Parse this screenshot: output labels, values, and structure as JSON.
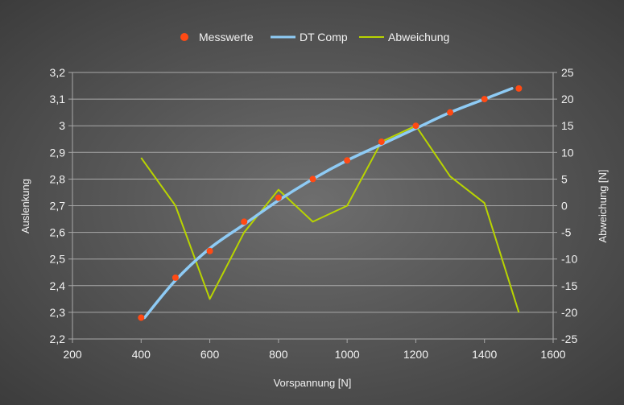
{
  "chart_data": {
    "type": "line",
    "title": "",
    "xlabel": "Vorspannung [N]",
    "ylabel": "Auslenkung",
    "y2label": "Abweichung [N]",
    "xlim": [
      200,
      1600
    ],
    "ylim": [
      2.2,
      3.2
    ],
    "y2lim": [
      -25,
      25
    ],
    "xticks": [
      200,
      400,
      600,
      800,
      1000,
      1200,
      1400,
      1600
    ],
    "yticks": [
      "2,2",
      "2,3",
      "2,4",
      "2,5",
      "2,6",
      "2,7",
      "2,8",
      "2,9",
      "3",
      "3,1",
      "3,2"
    ],
    "y2ticks": [
      "-25",
      "-20",
      "-15",
      "-10",
      "-5",
      "0",
      "5",
      "10",
      "15",
      "20",
      "25"
    ],
    "grid": true,
    "legend_position": "top-center",
    "colors": {
      "messwerte": "#ff4a14",
      "dtcomp": "#8ecbf5",
      "abweichung": "#b8d400",
      "grid": "#a8a8a8",
      "text": "#f2f2f2"
    },
    "series": [
      {
        "name": "Messwerte",
        "kind": "scatter",
        "axis": "left",
        "x": [
          400,
          500,
          600,
          700,
          800,
          900,
          1000,
          1100,
          1200,
          1300,
          1400,
          1500
        ],
        "y": [
          2.28,
          2.43,
          2.53,
          2.64,
          2.73,
          2.8,
          2.87,
          2.94,
          3.0,
          3.05,
          3.1,
          3.14
        ]
      },
      {
        "name": "DT Comp",
        "kind": "line",
        "axis": "left",
        "x": [
          410,
          500,
          600,
          700,
          800,
          900,
          1000,
          1100,
          1200,
          1300,
          1400,
          1480
        ],
        "y": [
          2.28,
          2.42,
          2.54,
          2.63,
          2.72,
          2.8,
          2.87,
          2.93,
          2.99,
          3.05,
          3.1,
          3.14
        ]
      },
      {
        "name": "Abweichung",
        "kind": "line",
        "axis": "right",
        "x": [
          400,
          500,
          600,
          700,
          800,
          900,
          1000,
          1100,
          1200,
          1300,
          1400,
          1500
        ],
        "y": [
          9,
          0,
          -17.5,
          -5,
          3,
          -3,
          0,
          12,
          15,
          5.5,
          0.5,
          -20
        ]
      }
    ]
  }
}
